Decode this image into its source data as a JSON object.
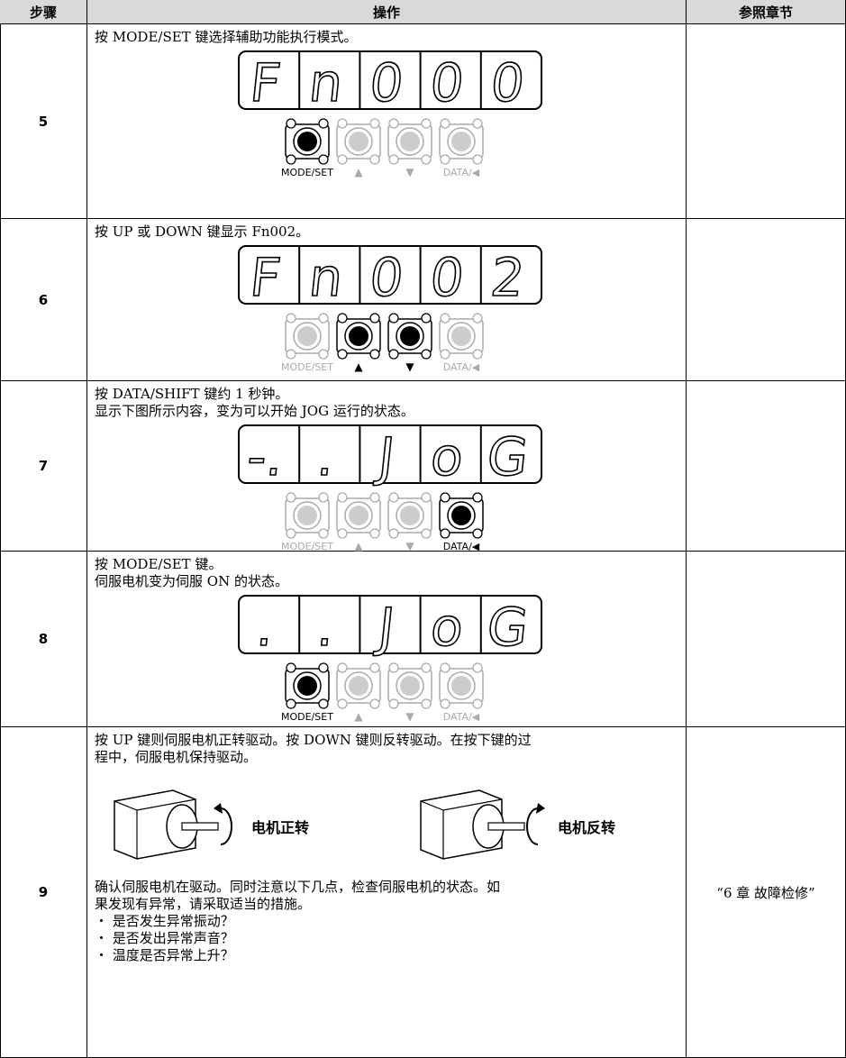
{
  "table": {
    "header": [
      "步骤",
      "操作",
      "参照章节"
    ],
    "rows": [
      {
        "step": "5",
        "text": [
          "按 MODE/SET 键选择辅助功能执行模式。"
        ],
        "display": [
          "F",
          "n",
          "0",
          "0",
          "0"
        ],
        "keys": [
          "MODE/SET",
          "▲",
          "▼",
          "DATA/◀"
        ],
        "pressed": [
          0
        ]
      },
      {
        "step": "6",
        "text": [
          "按 UP 或 DOWN 键显示 Fn002。"
        ],
        "display": [
          "F",
          "n",
          "0",
          "0",
          "2"
        ],
        "keys": [
          "MODE/SET",
          "▲",
          "▼",
          "DATA/◀"
        ],
        "pressed": [
          1,
          2
        ]
      },
      {
        "step": "7",
        "text": [
          "按 DATA/SHIFT 键约 1 秒钟。",
          "显示下图所示内容，变为可以开始 JOG 运行的状态。"
        ],
        "display": [
          "-.",
          ".",
          "J",
          "o",
          "G"
        ],
        "keys": [
          "MODE/SET",
          "▲",
          "▼",
          "DATA/◀"
        ],
        "pressed": [
          3
        ]
      },
      {
        "step": "8",
        "text": [
          "按 MODE/SET 键。",
          "伺服电机变为伺服 ON 的状态。"
        ],
        "display": [
          ".",
          ".",
          "J",
          "o",
          "G"
        ],
        "keys": [
          "MODE/SET",
          "▲",
          "▼",
          "DATA/◀"
        ],
        "pressed": [
          0
        ]
      },
      {
        "step": "9",
        "text": [
          "按 UP 键则伺服电机正转驱动。按 DOWN 键则反转驱动。在按下键的过",
          "程中，伺服电机保持驱动。"
        ],
        "motors": [
          "电机正转",
          "电机反转"
        ],
        "notes": [
          "确认伺服电机在驱动。同时注意以下几点，检查伺服电机的状态。如",
          "果发现有异常，请采取适当的措施。"
        ],
        "bullets": [
          "・ 是否发生异常振动？",
          "・ 是否发出异常声音？",
          "・ 温度是否异常上升？"
        ],
        "reference": "“6 章 故障检修”"
      }
    ]
  }
}
